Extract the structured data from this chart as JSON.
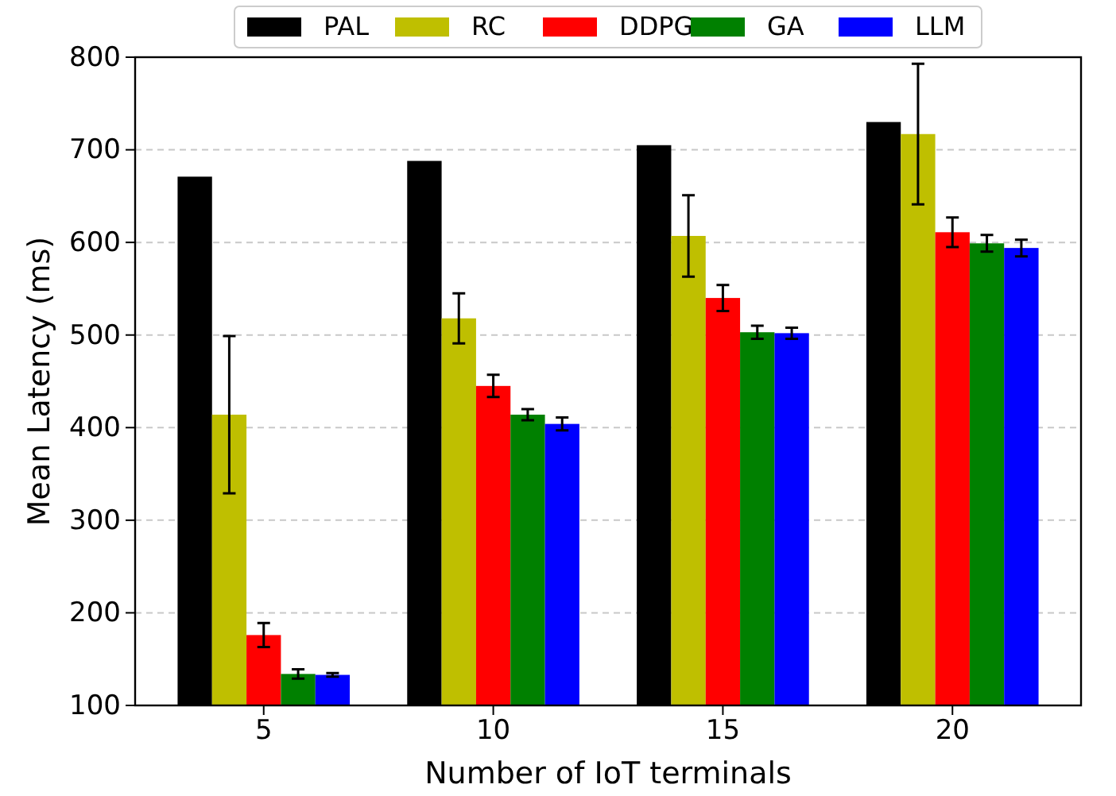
{
  "chart_data": {
    "type": "bar",
    "xlabel": "Number of IoT terminals",
    "ylabel": "Mean Latency (ms)",
    "categories": [
      "5",
      "10",
      "15",
      "20"
    ],
    "series": [
      {
        "name": "PAL",
        "color": "#000000",
        "values": [
          671,
          688,
          705,
          730
        ]
      },
      {
        "name": "RC",
        "color": "#bfbf00",
        "values": [
          414,
          518,
          607,
          717
        ],
        "errors": [
          85,
          27,
          44,
          76
        ]
      },
      {
        "name": "DDPG",
        "color": "#ff0000",
        "values": [
          176,
          445,
          540,
          611
        ],
        "errors": [
          13,
          12,
          14,
          16
        ]
      },
      {
        "name": "GA",
        "color": "#008000",
        "values": [
          134,
          414,
          503,
          599
        ],
        "errors": [
          5,
          6,
          7,
          9
        ]
      },
      {
        "name": "LLM",
        "color": "#0000ff",
        "values": [
          133,
          404,
          502,
          594
        ],
        "errors": [
          2,
          7,
          6,
          9
        ]
      }
    ],
    "ylim": [
      100,
      800
    ],
    "yticks": [
      100,
      200,
      300,
      400,
      500,
      600,
      700,
      800
    ],
    "grid": "y",
    "legend": "top"
  }
}
